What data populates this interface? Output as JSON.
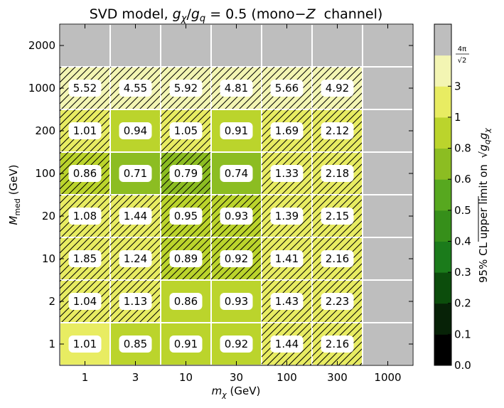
{
  "chart_data": {
    "type": "heatmap",
    "title": "SVD model, g_χ/g_q = 0.5 (mono−Z channel)",
    "title_parts": {
      "prefix": "SVD model, ",
      "g1": "g",
      "sub1": "χ",
      "slash": "/",
      "g2": "g",
      "sub2": "q",
      "suffix": " = 0.5 (mono−",
      "z": "Z",
      "suffix2": "  channel)"
    },
    "xlabel": "m_χ (GeV)",
    "xlabel_parts": {
      "m": "m",
      "sub": "χ",
      "unit": " (GeV)"
    },
    "ylabel": "M_med (GeV)",
    "ylabel_parts": {
      "m": "M",
      "sub": "med",
      "unit": " (GeV)"
    },
    "x_categories": [
      "1",
      "3",
      "10",
      "30",
      "100",
      "300",
      "1000"
    ],
    "y_categories": [
      "2000",
      "1000",
      "200",
      "100",
      "20",
      "10",
      "2",
      "1"
    ],
    "y_tick_labels": [
      "2000",
      "1000",
      "200",
      "100",
      "20",
      "10",
      "2",
      "1"
    ],
    "values": [
      [
        null,
        null,
        null,
        null,
        null,
        null,
        null
      ],
      [
        5.52,
        4.55,
        5.92,
        4.81,
        5.66,
        4.92,
        null
      ],
      [
        1.01,
        0.94,
        1.05,
        0.91,
        1.69,
        2.12,
        null
      ],
      [
        0.86,
        0.71,
        0.79,
        0.74,
        1.33,
        2.18,
        null
      ],
      [
        1.08,
        1.44,
        0.95,
        0.93,
        1.39,
        2.15,
        null
      ],
      [
        1.85,
        1.24,
        0.89,
        0.92,
        1.41,
        2.16,
        null
      ],
      [
        1.04,
        1.13,
        0.86,
        0.93,
        1.43,
        2.23,
        null
      ],
      [
        1.01,
        0.85,
        0.91,
        0.92,
        1.44,
        2.16,
        null
      ]
    ],
    "value_labels": [
      [],
      [
        "5.52",
        "4.55",
        "5.92",
        "4.81",
        "5.66",
        "4.92"
      ],
      [
        "1.01",
        "0.94",
        "1.05",
        "0.91",
        "1.69",
        "2.12"
      ],
      [
        "0.86",
        "0.71",
        "0.79",
        "0.74",
        "1.33",
        "2.18"
      ],
      [
        "1.08",
        "1.44",
        "0.95",
        "0.93",
        "1.39",
        "2.15"
      ],
      [
        "1.85",
        "1.24",
        "0.89",
        "0.92",
        "1.41",
        "2.16"
      ],
      [
        "1.04",
        "1.13",
        "0.86",
        "0.93",
        "1.43",
        "2.23"
      ],
      [
        "1.01",
        "0.85",
        "0.91",
        "0.92",
        "1.44",
        "2.16"
      ]
    ],
    "hatched": [
      [
        false,
        false,
        false,
        false,
        false,
        false,
        false
      ],
      [
        true,
        true,
        true,
        true,
        true,
        true,
        false
      ],
      [
        true,
        false,
        true,
        false,
        true,
        true,
        false
      ],
      [
        true,
        false,
        true,
        false,
        true,
        true,
        false
      ],
      [
        true,
        true,
        true,
        true,
        true,
        true,
        false
      ],
      [
        true,
        true,
        true,
        true,
        true,
        true,
        false
      ],
      [
        true,
        true,
        false,
        false,
        true,
        true,
        false
      ],
      [
        false,
        false,
        false,
        false,
        true,
        true,
        false
      ]
    ],
    "missing_color": "#bebebe",
    "colorbar": {
      "label": "95% CL upper limit on √(g_q g_χ)",
      "label_prefix": "95% CL upper limit on ",
      "label_parts": {
        "g1": "g",
        "sub1": "q",
        "g2": "g",
        "sub2": "χ"
      },
      "boundaries": [
        0.0,
        0.1,
        0.2,
        0.3,
        0.4,
        0.5,
        0.6,
        0.8,
        1.0,
        3.0,
        7.109,
        1000
      ],
      "colors": [
        "#000000",
        "#072207",
        "#0c4d0c",
        "#1b7b1b",
        "#368f1a",
        "#57a81f",
        "#8cbd22",
        "#bbd42c",
        "#e8ec62",
        "#f3f5b3",
        "#bebebe"
      ],
      "tick_labels": [
        "0.0",
        "0.1",
        "0.2",
        "0.3",
        "0.4",
        "0.5",
        "0.6",
        "0.8",
        "1",
        "3"
      ],
      "top_label": "4π/√2",
      "top_label_parts": {
        "num": "4π",
        "den": "√2"
      }
    },
    "grid": true
  }
}
